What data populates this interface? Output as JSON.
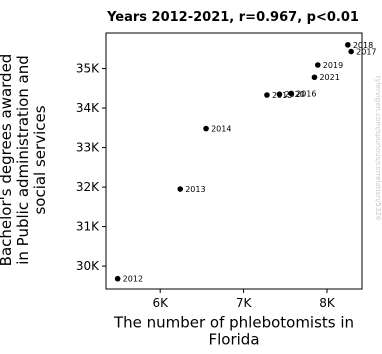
{
  "chart_data": {
    "type": "scatter",
    "title": "Years 2012-2021, r=0.967, p<0.01",
    "xlabel": "The number of phlebotomists in Florida",
    "ylabel": "Bachelor's degrees awarded in Public administration and social services",
    "x_ticks": [
      {
        "value": 6000,
        "label": "6K"
      },
      {
        "value": 7000,
        "label": "7K"
      },
      {
        "value": 8000,
        "label": "8K"
      }
    ],
    "y_ticks": [
      {
        "value": 30000,
        "label": "30K"
      },
      {
        "value": 31000,
        "label": "31K"
      },
      {
        "value": 32000,
        "label": "32K"
      },
      {
        "value": 33000,
        "label": "33K"
      },
      {
        "value": 34000,
        "label": "34K"
      },
      {
        "value": 35000,
        "label": "35K"
      }
    ],
    "xlim": [
      5350,
      8420
    ],
    "ylim": [
      29420,
      35900
    ],
    "grid": false,
    "points": [
      {
        "label": "2012",
        "x": 5490,
        "y": 29680
      },
      {
        "label": "2013",
        "x": 6240,
        "y": 31950
      },
      {
        "label": "2014",
        "x": 6550,
        "y": 33480
      },
      {
        "label": "2015",
        "x": 7280,
        "y": 34330
      },
      {
        "label": "2020",
        "x": 7430,
        "y": 34350
      },
      {
        "label": "2016",
        "x": 7570,
        "y": 34370
      },
      {
        "label": "2021",
        "x": 7850,
        "y": 34780
      },
      {
        "label": "2019",
        "x": 7890,
        "y": 35090
      },
      {
        "label": "2018",
        "x": 8250,
        "y": 35600
      },
      {
        "label": "2017",
        "x": 8290,
        "y": 35430
      }
    ]
  },
  "watermark": "tylervigen.com/spurious/correlation/5326"
}
